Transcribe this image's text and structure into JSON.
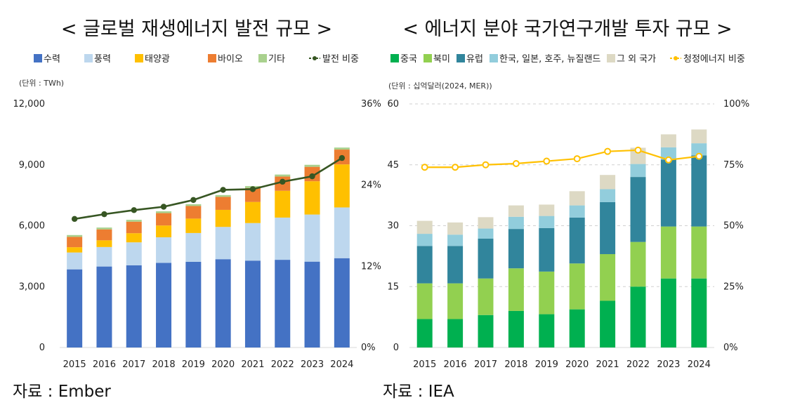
{
  "chart_data": [
    {
      "type": "bar",
      "title": "< 글로벌 재생에너지 발전 규모 >",
      "unit_label": "(단위 : TWh)",
      "source": "자료 : Ember",
      "categories": [
        "2015",
        "2016",
        "2017",
        "2018",
        "2019",
        "2020",
        "2021",
        "2022",
        "2023",
        "2024"
      ],
      "stacked": true,
      "ylim": [
        0,
        12000
      ],
      "yticks": [
        "0",
        "3,000",
        "6,000",
        "9,000",
        "12,000"
      ],
      "ytick_values": [
        0,
        3000,
        6000,
        9000,
        12000
      ],
      "y2lim": [
        0,
        36
      ],
      "y2ticks": [
        "0%",
        "12%",
        "24%",
        "36%"
      ],
      "y2tick_values": [
        0,
        12,
        24,
        36
      ],
      "legend_position": "top",
      "series": [
        {
          "name": "수력",
          "color": "#4472C4",
          "values": [
            3850,
            3990,
            4050,
            4170,
            4220,
            4350,
            4280,
            4320,
            4230,
            4400
          ]
        },
        {
          "name": "풍력",
          "color": "#BDD7EE",
          "values": [
            830,
            960,
            1130,
            1260,
            1420,
            1590,
            1850,
            2080,
            2320,
            2500
          ]
        },
        {
          "name": "태양광",
          "color": "#FFC000",
          "values": [
            260,
            330,
            450,
            580,
            710,
            840,
            1040,
            1320,
            1640,
            2120
          ]
        },
        {
          "name": "바이오",
          "color": "#ED7D31",
          "values": [
            510,
            540,
            570,
            610,
            620,
            640,
            680,
            700,
            710,
            730
          ]
        },
        {
          "name": "기타",
          "color": "#A9D18E",
          "values": [
            90,
            90,
            90,
            90,
            90,
            90,
            100,
            100,
            100,
            100
          ]
        }
      ],
      "line": {
        "name": "발전 비중",
        "color": "#375623",
        "values": [
          19.0,
          19.7,
          20.3,
          20.8,
          21.8,
          23.3,
          23.4,
          24.5,
          25.3,
          28.0
        ]
      }
    },
    {
      "type": "bar",
      "title": "< 에너지 분야 국가연구개발 투자 규모 >",
      "unit_label": "(단위 : 십억달러(2024, MER))",
      "source": "자료 : IEA",
      "categories": [
        "2015",
        "2016",
        "2017",
        "2018",
        "2019",
        "2020",
        "2021",
        "2022",
        "2023",
        "2024"
      ],
      "stacked": true,
      "ylim": [
        0,
        60
      ],
      "yticks": [
        "0",
        "15",
        "30",
        "45",
        "60"
      ],
      "ytick_values": [
        0,
        15,
        30,
        45,
        60
      ],
      "y2lim": [
        0,
        100
      ],
      "y2ticks": [
        "0%",
        "25%",
        "50%",
        "75%",
        "100%"
      ],
      "y2tick_values": [
        0,
        25,
        50,
        75,
        100
      ],
      "grid": true,
      "legend_position": "top",
      "series": [
        {
          "name": "중국",
          "color": "#00B050",
          "values": [
            7.0,
            7.0,
            8.0,
            9.0,
            8.2,
            9.4,
            11.5,
            15.0,
            17.0,
            17.0
          ]
        },
        {
          "name": "북미",
          "color": "#92D050",
          "values": [
            8.8,
            8.8,
            9.0,
            10.5,
            10.5,
            11.3,
            11.5,
            11.0,
            12.8,
            12.8
          ]
        },
        {
          "name": "유럽",
          "color": "#31859C",
          "values": [
            9.2,
            9.2,
            9.8,
            9.7,
            10.7,
            11.3,
            12.8,
            16.0,
            16.5,
            17.5
          ]
        },
        {
          "name": "한국, 일본, 호주, 뉴질랜드",
          "color": "#92CDDC",
          "values": [
            3.0,
            2.8,
            2.5,
            3.0,
            3.0,
            3.0,
            3.2,
            3.2,
            3.0,
            3.0
          ]
        },
        {
          "name": "그 외 국가",
          "color": "#DDD9C4",
          "values": [
            3.2,
            3.0,
            2.8,
            2.8,
            2.8,
            3.5,
            3.5,
            4.0,
            3.2,
            3.4
          ]
        }
      ],
      "line": {
        "name": "청정에너지 비중",
        "color": "#FFC000",
        "values": [
          74,
          74,
          75,
          75.5,
          76.5,
          77.5,
          80.5,
          81,
          77,
          78.5
        ]
      }
    }
  ]
}
